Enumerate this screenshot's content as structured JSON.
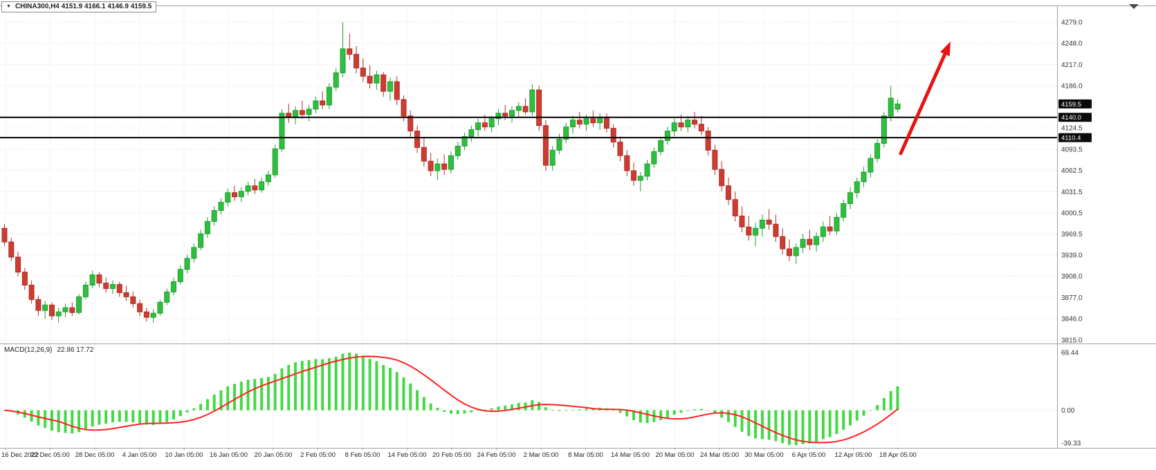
{
  "symbol_bar": {
    "dropdown_icon": "▼",
    "label": "CHINA300,H4  4151.9 4166.1 4146.9 4159.5"
  },
  "chart_data": {
    "type": "candlestick",
    "symbol": "CHINA300",
    "timeframe": "H4",
    "current_ohlc": {
      "open": 4151.9,
      "high": 4166.1,
      "low": 4146.9,
      "close": 4159.5
    },
    "price_axis": {
      "min": 3815.0,
      "max": 4279.0,
      "labels": [
        "4279.0",
        "4248.0",
        "4217.0",
        "4186.0",
        "4124.5",
        "4093.5",
        "4062.5",
        "4031.5",
        "4000.5",
        "3969.5",
        "3939.0",
        "3908.0",
        "3877.0",
        "3846.0",
        "3815.0"
      ],
      "tags": [
        {
          "text": "4159.5"
        },
        {
          "text": "4140.0"
        },
        {
          "text": "4110.4"
        }
      ]
    },
    "time_axis": [
      "16 Dec 2022",
      "22 Dec 05:00",
      "28 Dec 05:00",
      "4 Jan 05:00",
      "10 Jan 05:00",
      "16 Jan 05:00",
      "20 Jan 05:00",
      "2 Feb 05:00",
      "8 Feb 05:00",
      "14 Feb 05:00",
      "20 Feb 05:00",
      "24 Feb 05:00",
      "2 Mar 05:00",
      "8 Mar 05:00",
      "14 Mar 05:00",
      "20 Mar 05:00",
      "24 Mar 05:00",
      "30 Mar 05:00",
      "6 Apr 05:00",
      "12 Apr 05:00",
      "18 Apr 05:00"
    ],
    "hlines": [
      4140.0,
      4110.4
    ],
    "candles": [
      [
        3978,
        3984,
        3952,
        3958
      ],
      [
        3958,
        3964,
        3930,
        3936
      ],
      [
        3936,
        3944,
        3908,
        3914
      ],
      [
        3914,
        3920,
        3888,
        3895
      ],
      [
        3895,
        3902,
        3868,
        3874
      ],
      [
        3874,
        3880,
        3850,
        3858
      ],
      [
        3858,
        3872,
        3846,
        3866
      ],
      [
        3866,
        3870,
        3844,
        3850
      ],
      [
        3850,
        3862,
        3840,
        3856
      ],
      [
        3856,
        3868,
        3848,
        3862
      ],
      [
        3862,
        3870,
        3850,
        3855
      ],
      [
        3855,
        3882,
        3852,
        3878
      ],
      [
        3878,
        3900,
        3874,
        3895
      ],
      [
        3895,
        3916,
        3890,
        3910
      ],
      [
        3910,
        3914,
        3892,
        3898
      ],
      [
        3898,
        3906,
        3884,
        3890
      ],
      [
        3890,
        3902,
        3882,
        3896
      ],
      [
        3896,
        3900,
        3878,
        3884
      ],
      [
        3884,
        3894,
        3872,
        3878
      ],
      [
        3878,
        3886,
        3862,
        3868
      ],
      [
        3868,
        3874,
        3850,
        3856
      ],
      [
        3856,
        3862,
        3842,
        3848
      ],
      [
        3848,
        3860,
        3840,
        3854
      ],
      [
        3854,
        3874,
        3850,
        3870
      ],
      [
        3870,
        3890,
        3866,
        3885
      ],
      [
        3885,
        3906,
        3880,
        3900
      ],
      [
        3900,
        3924,
        3896,
        3918
      ],
      [
        3918,
        3940,
        3912,
        3934
      ],
      [
        3934,
        3956,
        3928,
        3950
      ],
      [
        3950,
        3976,
        3946,
        3970
      ],
      [
        3970,
        3994,
        3964,
        3988
      ],
      [
        3988,
        4010,
        3982,
        4004
      ],
      [
        4004,
        4022,
        3998,
        4016
      ],
      [
        4016,
        4036,
        4010,
        4030
      ],
      [
        4030,
        4040,
        4018,
        4024
      ],
      [
        4024,
        4038,
        4016,
        4032
      ],
      [
        4032,
        4046,
        4026,
        4040
      ],
      [
        4040,
        4050,
        4028,
        4034
      ],
      [
        4034,
        4052,
        4030,
        4046
      ],
      [
        4046,
        4062,
        4040,
        4056
      ],
      [
        4056,
        4100,
        4052,
        4094
      ],
      [
        4094,
        4152,
        4090,
        4146
      ],
      [
        4146,
        4160,
        4132,
        4140
      ],
      [
        4140,
        4156,
        4130,
        4150
      ],
      [
        4150,
        4164,
        4138,
        4144
      ],
      [
        4144,
        4158,
        4134,
        4152
      ],
      [
        4152,
        4170,
        4146,
        4164
      ],
      [
        4164,
        4178,
        4152,
        4158
      ],
      [
        4158,
        4190,
        4152,
        4184
      ],
      [
        4184,
        4212,
        4178,
        4205
      ],
      [
        4205,
        4279,
        4198,
        4240
      ],
      [
        4240,
        4262,
        4224,
        4232
      ],
      [
        4232,
        4244,
        4204,
        4212
      ],
      [
        4212,
        4226,
        4192,
        4200
      ],
      [
        4200,
        4216,
        4182,
        4190
      ],
      [
        4190,
        4208,
        4180,
        4202
      ],
      [
        4202,
        4206,
        4170,
        4178
      ],
      [
        4178,
        4198,
        4164,
        4192
      ],
      [
        4192,
        4200,
        4158,
        4166
      ],
      [
        4166,
        4172,
        4134,
        4142
      ],
      [
        4142,
        4150,
        4112,
        4120
      ],
      [
        4120,
        4128,
        4088,
        4096
      ],
      [
        4096,
        4110,
        4068,
        4076
      ],
      [
        4076,
        4088,
        4054,
        4062
      ],
      [
        4062,
        4080,
        4048,
        4072
      ],
      [
        4072,
        4086,
        4056,
        4064
      ],
      [
        4064,
        4090,
        4058,
        4084
      ],
      [
        4084,
        4104,
        4078,
        4098
      ],
      [
        4098,
        4118,
        4092,
        4112
      ],
      [
        4112,
        4128,
        4104,
        4122
      ],
      [
        4122,
        4138,
        4112,
        4132
      ],
      [
        4132,
        4144,
        4120,
        4126
      ],
      [
        4126,
        4142,
        4118,
        4138
      ],
      [
        4138,
        4152,
        4128,
        4146
      ],
      [
        4146,
        4158,
        4136,
        4142
      ],
      [
        4142,
        4156,
        4132,
        4150
      ],
      [
        4150,
        4162,
        4140,
        4156
      ],
      [
        4156,
        4168,
        4144,
        4148
      ],
      [
        4148,
        4188,
        4142,
        4180
      ],
      [
        4180,
        4186,
        4120,
        4128
      ],
      [
        4128,
        4136,
        4062,
        4070
      ],
      [
        4070,
        4098,
        4062,
        4092
      ],
      [
        4092,
        4116,
        4086,
        4108
      ],
      [
        4108,
        4132,
        4102,
        4126
      ],
      [
        4126,
        4142,
        4116,
        4136
      ],
      [
        4136,
        4148,
        4124,
        4130
      ],
      [
        4130,
        4144,
        4120,
        4138
      ],
      [
        4138,
        4150,
        4126,
        4132
      ],
      [
        4132,
        4146,
        4122,
        4140
      ],
      [
        4140,
        4146,
        4118,
        4124
      ],
      [
        4124,
        4130,
        4096,
        4104
      ],
      [
        4104,
        4112,
        4076,
        4084
      ],
      [
        4084,
        4092,
        4054,
        4062
      ],
      [
        4062,
        4074,
        4040,
        4048
      ],
      [
        4048,
        4060,
        4032,
        4054
      ],
      [
        4054,
        4078,
        4048,
        4072
      ],
      [
        4072,
        4096,
        4066,
        4090
      ],
      [
        4090,
        4112,
        4084,
        4106
      ],
      [
        4106,
        4126,
        4100,
        4120
      ],
      [
        4120,
        4138,
        4112,
        4132
      ],
      [
        4132,
        4144,
        4120,
        4126
      ],
      [
        4126,
        4142,
        4118,
        4136
      ],
      [
        4136,
        4148,
        4124,
        4130
      ],
      [
        4130,
        4142,
        4114,
        4120
      ],
      [
        4120,
        4126,
        4084,
        4092
      ],
      [
        4092,
        4100,
        4056,
        4064
      ],
      [
        4064,
        4076,
        4032,
        4040
      ],
      [
        4040,
        4052,
        4012,
        4020
      ],
      [
        4020,
        4032,
        3988,
        3996
      ],
      [
        3996,
        4010,
        3972,
        3980
      ],
      [
        3980,
        3996,
        3960,
        3968
      ],
      [
        3968,
        3986,
        3952,
        3978
      ],
      [
        3978,
        3998,
        3966,
        3990
      ],
      [
        3990,
        4006,
        3976,
        3984
      ],
      [
        3984,
        3998,
        3958,
        3966
      ],
      [
        3966,
        3978,
        3940,
        3948
      ],
      [
        3948,
        3962,
        3930,
        3938
      ],
      [
        3938,
        3956,
        3926,
        3950
      ],
      [
        3950,
        3970,
        3942,
        3962
      ],
      [
        3962,
        3976,
        3946,
        3954
      ],
      [
        3954,
        3972,
        3944,
        3966
      ],
      [
        3966,
        3988,
        3958,
        3980
      ],
      [
        3980,
        3996,
        3968,
        3974
      ],
      [
        3974,
        4000,
        3968,
        3994
      ],
      [
        3994,
        4020,
        3988,
        4014
      ],
      [
        4014,
        4038,
        4006,
        4030
      ],
      [
        4030,
        4052,
        4022,
        4046
      ],
      [
        4046,
        4068,
        4038,
        4060
      ],
      [
        4060,
        4086,
        4052,
        4080
      ],
      [
        4080,
        4108,
        4074,
        4102
      ],
      [
        4102,
        4148,
        4096,
        4142
      ],
      [
        4142,
        4186,
        4134,
        4168
      ],
      [
        4151.9,
        4166.1,
        4146.9,
        4159.5
      ]
    ],
    "macd": {
      "label": "MACD(12,26,9)",
      "values": "22.86 17.72",
      "params": [
        12,
        26,
        9
      ],
      "axis": [
        "69.44",
        "0.00",
        "-39.33"
      ]
    },
    "arrow": {
      "from": [
        1302,
        222
      ],
      "to": [
        1374,
        60
      ],
      "width": 5
    },
    "colors": {
      "up": "#2fbf3f",
      "up_border": "#1d9e2e",
      "down": "#cf3b30",
      "down_border": "#a92f27",
      "macd_bar": "#44d944",
      "macd_signal": "#ff2020",
      "hline": "#000000",
      "arrow": "#e81414",
      "grid": "#dedede",
      "frame": "#a0a0a0",
      "axis_text": "#333333",
      "tag_bg": "#0a0a0a",
      "tag_text": "#ffffff"
    }
  }
}
